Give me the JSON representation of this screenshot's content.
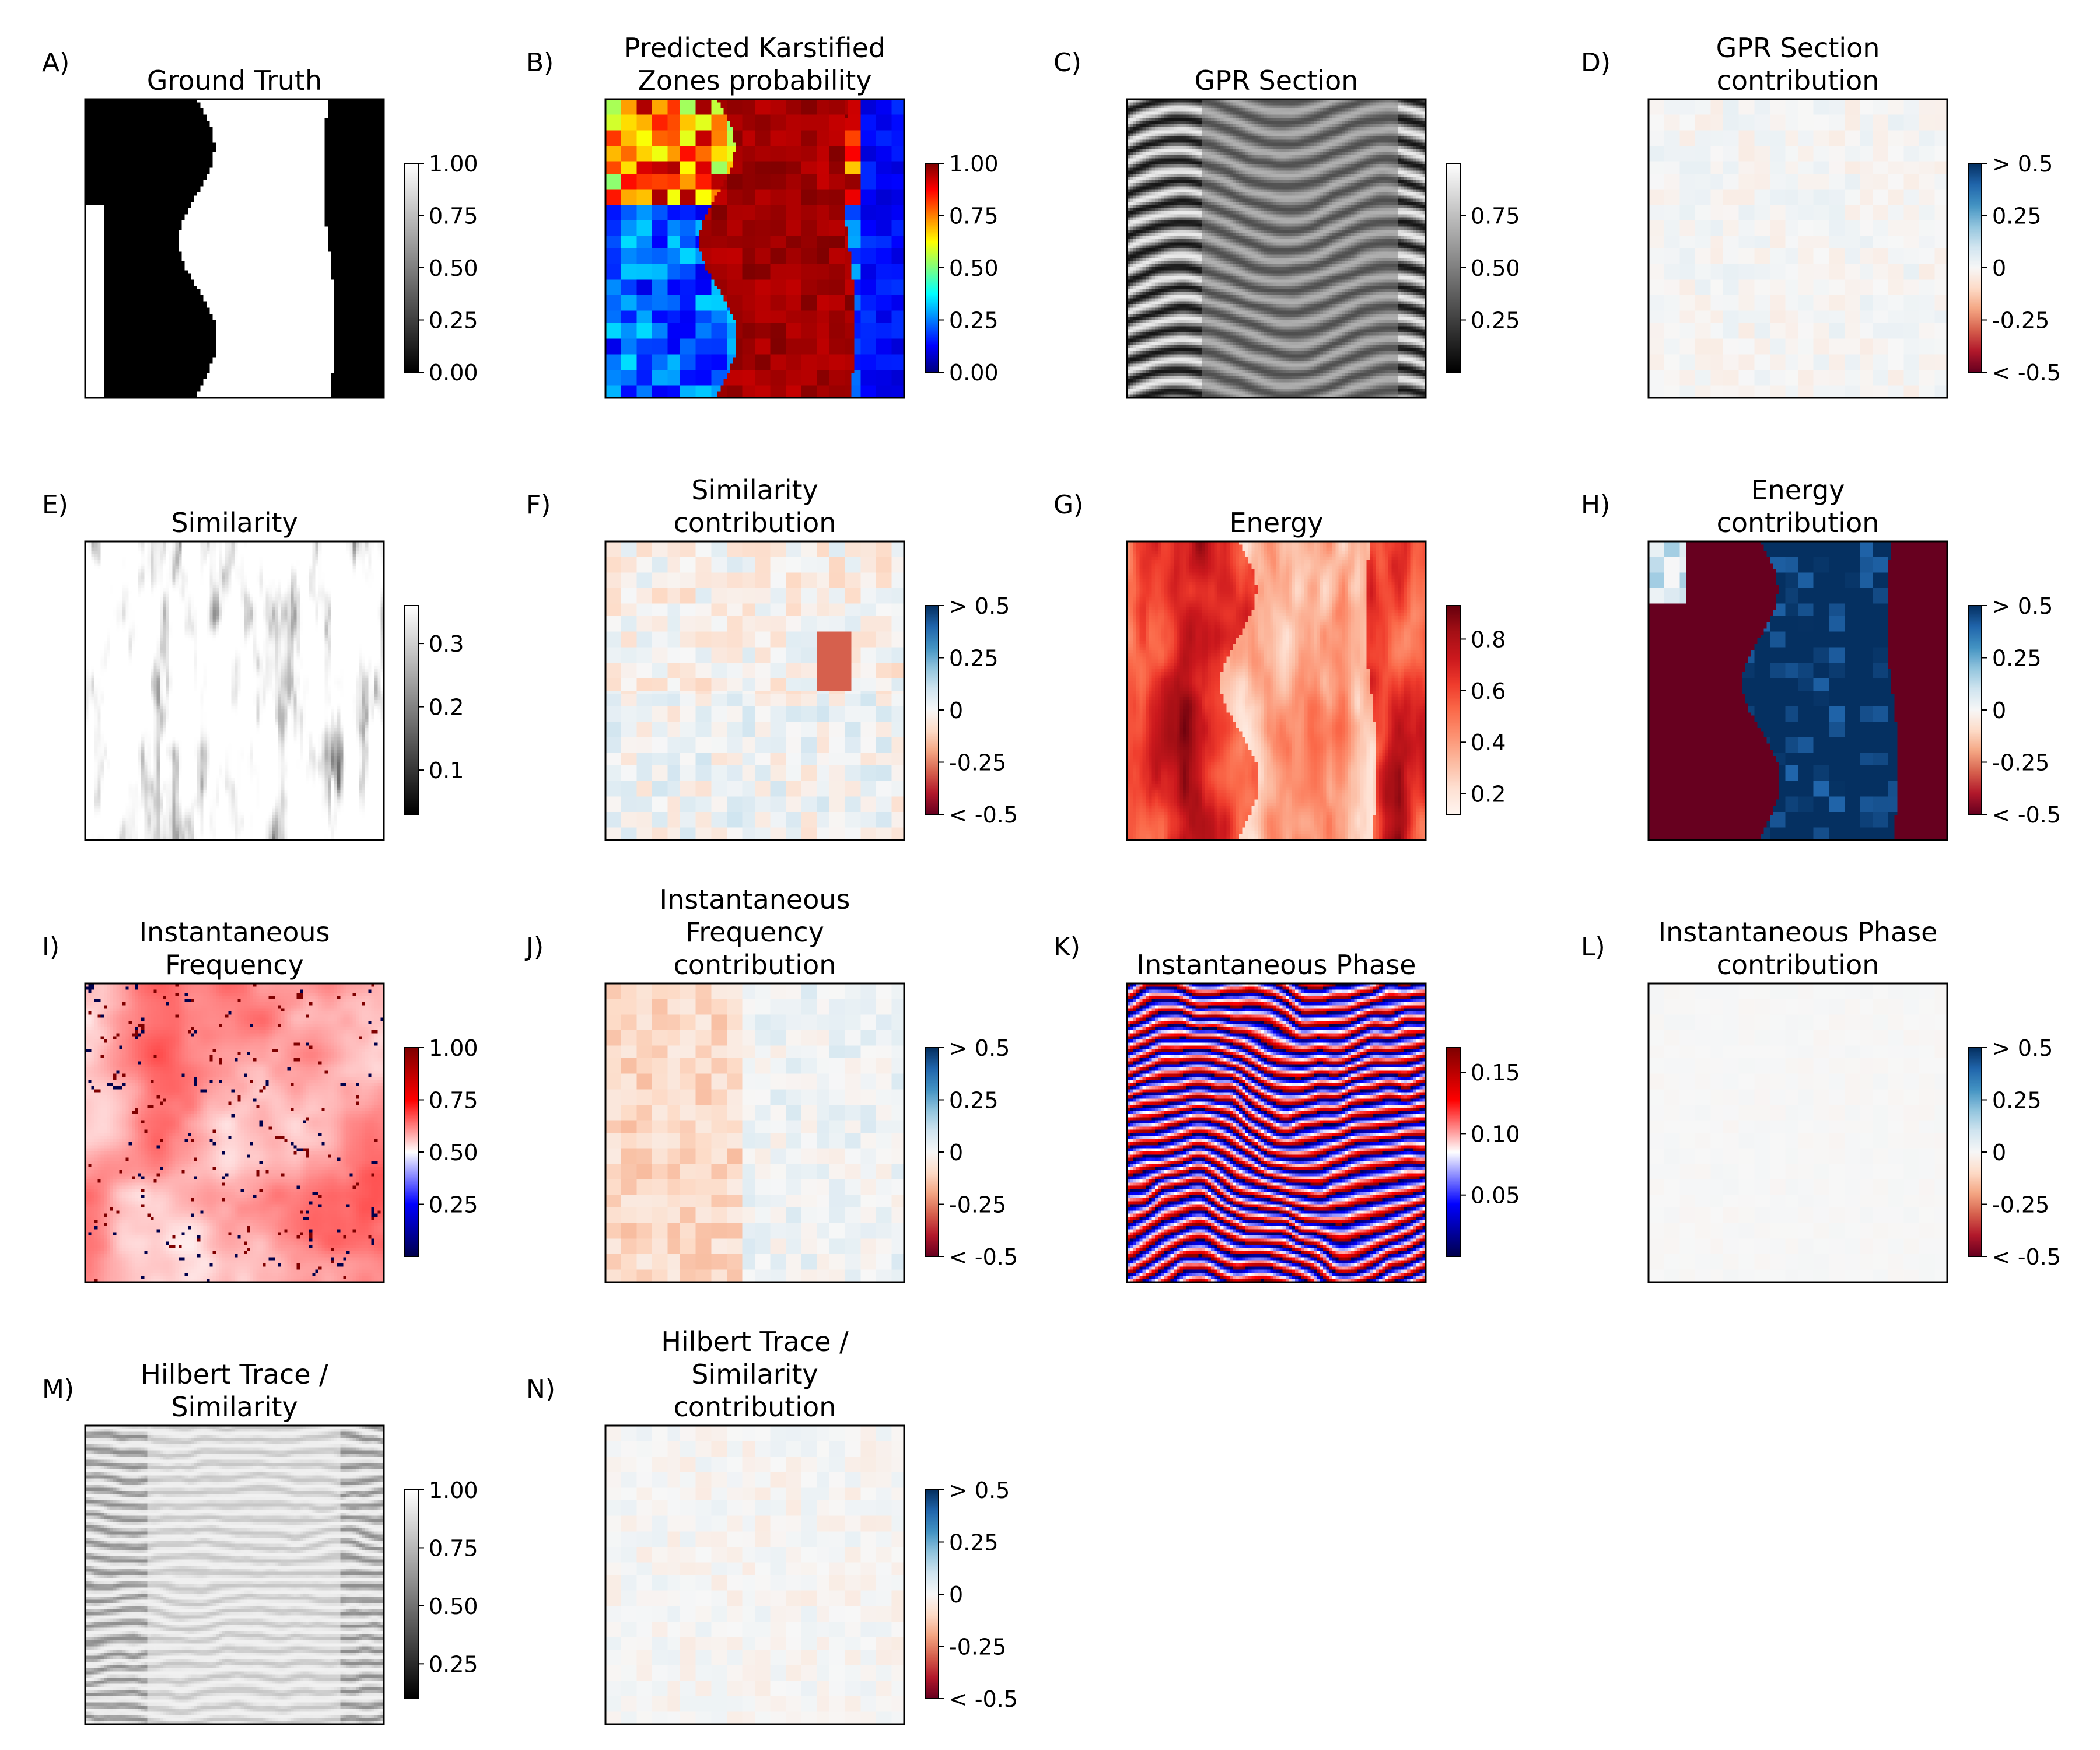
{
  "figure": {
    "background": "#ffffff"
  },
  "colormaps": {
    "gray": [
      "#000000",
      "#ffffff"
    ],
    "gray_rev": [
      "#ffffff",
      "#000000"
    ],
    "jet": [
      "#00007f",
      "#0000ff",
      "#007fff",
      "#00ffff",
      "#7fff7f",
      "#ffff00",
      "#ff7f00",
      "#ff0000",
      "#7f0000"
    ],
    "rdbu": [
      "#67001f",
      "#b2182b",
      "#d6604d",
      "#f4a582",
      "#fddbc7",
      "#f7f7f7",
      "#d1e5f0",
      "#92c5de",
      "#4393c3",
      "#2166ac",
      "#053061"
    ],
    "reds": [
      "#fff5f0",
      "#fee0d2",
      "#fcbba1",
      "#fc9272",
      "#fb6a4a",
      "#ef3b2c",
      "#cb181d",
      "#a50f15",
      "#67000d"
    ],
    "seismic": [
      "#00004c",
      "#0000ff",
      "#ffffff",
      "#ff0000",
      "#7f0000"
    ]
  },
  "chart_data": [
    {
      "type": "heatmap",
      "letter": "A)",
      "title": [
        "Ground Truth"
      ],
      "pattern": "mask",
      "cmap": "gray",
      "cbar": {
        "min": 0.0,
        "max": 1.0,
        "ticks": [
          [
            0.0,
            "0.00"
          ],
          [
            0.25,
            "0.25"
          ],
          [
            0.5,
            "0.50"
          ],
          [
            0.75,
            "0.75"
          ],
          [
            1.0,
            "1.00"
          ]
        ]
      }
    },
    {
      "type": "heatmap",
      "letter": "B)",
      "title": [
        "Predicted Karstified",
        "Zones probability"
      ],
      "pattern": "prob",
      "cmap": "jet",
      "cbar": {
        "min": 0.0,
        "max": 1.0,
        "ticks": [
          [
            0.0,
            "0.00"
          ],
          [
            0.25,
            "0.25"
          ],
          [
            0.5,
            "0.50"
          ],
          [
            0.75,
            "0.75"
          ],
          [
            1.0,
            "1.00"
          ]
        ]
      }
    },
    {
      "type": "heatmap",
      "letter": "C)",
      "title": [
        "GPR Section"
      ],
      "pattern": "gpr",
      "cmap": "gray",
      "cbar": {
        "min": 0.0,
        "max": 1.0,
        "ticks": [
          [
            0.25,
            "0.25"
          ],
          [
            0.5,
            "0.50"
          ],
          [
            0.75,
            "0.75"
          ]
        ]
      }
    },
    {
      "type": "heatmap",
      "letter": "D)",
      "title": [
        "GPR Section",
        "contribution"
      ],
      "pattern": "contrib_faint",
      "cmap": "rdbu",
      "cbar": {
        "min": -0.5,
        "max": 0.5,
        "ticks": [
          [
            -0.5,
            "< -0.5"
          ],
          [
            -0.25,
            "-0.25"
          ],
          [
            0,
            "0"
          ],
          [
            0.25,
            "0.25"
          ],
          [
            0.5,
            "> 0.5"
          ]
        ]
      }
    },
    {
      "type": "heatmap",
      "letter": "E)",
      "title": [
        "Similarity"
      ],
      "pattern": "similarity",
      "cmap": "gray",
      "cbar": {
        "min": 0.03,
        "max": 0.36,
        "ticks": [
          [
            0.1,
            "0.1"
          ],
          [
            0.2,
            "0.2"
          ],
          [
            0.3,
            "0.3"
          ]
        ]
      }
    },
    {
      "type": "heatmap",
      "letter": "F)",
      "title": [
        "Similarity",
        "contribution"
      ],
      "pattern": "contrib_sim",
      "cmap": "rdbu",
      "cbar": {
        "min": -0.5,
        "max": 0.5,
        "ticks": [
          [
            -0.5,
            "< -0.5"
          ],
          [
            -0.25,
            "-0.25"
          ],
          [
            0,
            "0"
          ],
          [
            0.25,
            "0.25"
          ],
          [
            0.5,
            "> 0.5"
          ]
        ]
      }
    },
    {
      "type": "heatmap",
      "letter": "G)",
      "title": [
        "Energy"
      ],
      "pattern": "energy",
      "cmap": "reds",
      "cbar": {
        "min": 0.12,
        "max": 0.93,
        "ticks": [
          [
            0.2,
            "0.2"
          ],
          [
            0.4,
            "0.4"
          ],
          [
            0.6,
            "0.6"
          ],
          [
            0.8,
            "0.8"
          ]
        ]
      }
    },
    {
      "type": "heatmap",
      "letter": "H)",
      "title": [
        "Energy",
        "contribution"
      ],
      "pattern": "contrib_energy",
      "cmap": "rdbu",
      "cbar": {
        "min": -0.5,
        "max": 0.5,
        "ticks": [
          [
            -0.5,
            "< -0.5"
          ],
          [
            -0.25,
            "-0.25"
          ],
          [
            0,
            "0"
          ],
          [
            0.25,
            "0.25"
          ],
          [
            0.5,
            "> 0.5"
          ]
        ]
      }
    },
    {
      "type": "heatmap",
      "letter": "I)",
      "title": [
        "Instantaneous",
        "Frequency"
      ],
      "pattern": "ifreq",
      "cmap": "seismic",
      "cbar": {
        "min": 0.0,
        "max": 1.0,
        "ticks": [
          [
            0.25,
            "0.25"
          ],
          [
            0.5,
            "0.50"
          ],
          [
            0.75,
            "0.75"
          ],
          [
            1.0,
            "1.00"
          ]
        ]
      }
    },
    {
      "type": "heatmap",
      "letter": "J)",
      "title": [
        "Instantaneous",
        "Frequency",
        "contribution"
      ],
      "pattern": "contrib_freq",
      "cmap": "rdbu",
      "cbar": {
        "min": -0.5,
        "max": 0.5,
        "ticks": [
          [
            -0.5,
            "< -0.5"
          ],
          [
            -0.25,
            "-0.25"
          ],
          [
            0,
            "0"
          ],
          [
            0.25,
            "0.25"
          ],
          [
            0.5,
            "> 0.5"
          ]
        ]
      }
    },
    {
      "type": "heatmap",
      "letter": "K)",
      "title": [
        "Instantaneous Phase"
      ],
      "pattern": "phase",
      "cmap": "seismic",
      "cbar": {
        "min": 0.0,
        "max": 0.17,
        "ticks": [
          [
            0.05,
            "0.05"
          ],
          [
            0.1,
            "0.10"
          ],
          [
            0.15,
            "0.15"
          ]
        ]
      }
    },
    {
      "type": "heatmap",
      "letter": "L)",
      "title": [
        "Instantaneous Phase",
        "contribution"
      ],
      "pattern": "contrib_none",
      "cmap": "rdbu",
      "cbar": {
        "min": -0.5,
        "max": 0.5,
        "ticks": [
          [
            -0.5,
            "< -0.5"
          ],
          [
            -0.25,
            "-0.25"
          ],
          [
            0,
            "0"
          ],
          [
            0.25,
            "0.25"
          ],
          [
            0.5,
            "> 0.5"
          ]
        ]
      }
    },
    {
      "type": "heatmap",
      "letter": "M)",
      "title": [
        "Hilbert Trace /",
        "Similarity"
      ],
      "pattern": "hilbert",
      "cmap": "gray",
      "cbar": {
        "min": 0.1,
        "max": 1.0,
        "ticks": [
          [
            0.25,
            "0.25"
          ],
          [
            0.5,
            "0.50"
          ],
          [
            0.75,
            "0.75"
          ],
          [
            1.0,
            "1.00"
          ]
        ]
      }
    },
    {
      "type": "heatmap",
      "letter": "N)",
      "title": [
        "Hilbert Trace /",
        "Similarity",
        "contribution"
      ],
      "pattern": "contrib_faint2",
      "cmap": "rdbu",
      "cbar": {
        "min": -0.5,
        "max": 0.5,
        "ticks": [
          [
            -0.5,
            "< -0.5"
          ],
          [
            -0.25,
            "-0.25"
          ],
          [
            0,
            "0"
          ],
          [
            0.25,
            "0.25"
          ],
          [
            0.5,
            "> 0.5"
          ]
        ]
      }
    }
  ]
}
